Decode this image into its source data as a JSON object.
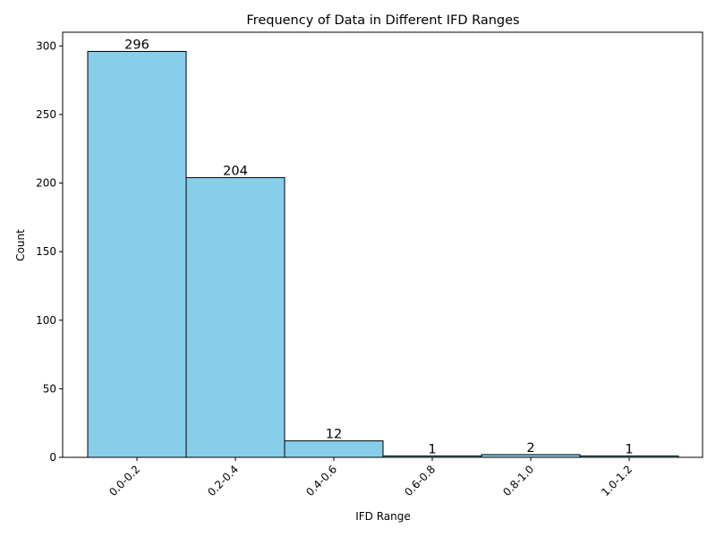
{
  "chart_data": {
    "type": "bar",
    "title": "Frequency of Data in Different IFD Ranges",
    "xlabel": "IFD Range",
    "ylabel": "Count",
    "categories": [
      "0.0-0.2",
      "0.2-0.4",
      "0.4-0.6",
      "0.6-0.8",
      "0.8-1.0",
      "1.0-1.2"
    ],
    "values": [
      296,
      204,
      12,
      1,
      2,
      1
    ],
    "data_labels": [
      "296",
      "204",
      "12",
      "1",
      "2",
      "1"
    ],
    "ylim": [
      0,
      310
    ],
    "yticks": [
      0,
      50,
      100,
      150,
      200,
      250,
      300
    ],
    "ytick_labels": [
      "0",
      "50",
      "100",
      "150",
      "200",
      "250",
      "300"
    ],
    "grid": false,
    "legend": "none",
    "bar_color": "#87CEEB",
    "edge_color": "#000000"
  }
}
